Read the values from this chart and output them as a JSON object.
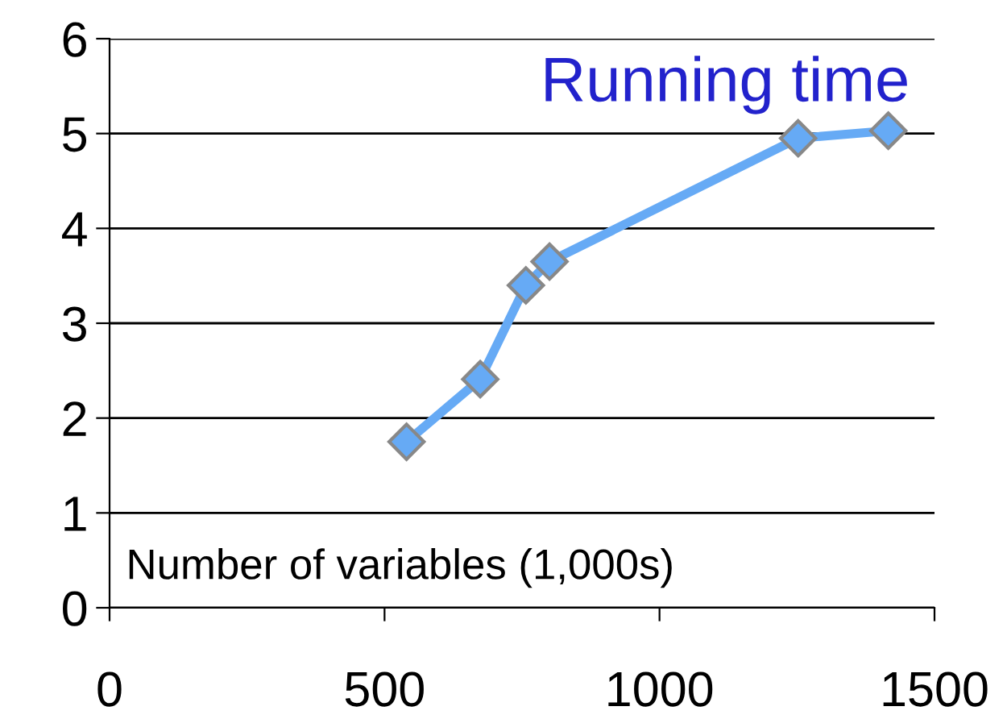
{
  "chart_data": {
    "type": "line",
    "title": "Running time",
    "xlabel": "Number of variables (1,000s)",
    "x": [
      540,
      674,
      757,
      800,
      1252,
      1416
    ],
    "series": [
      {
        "color": "#66aaf5",
        "values": [
          1.75,
          2.41,
          3.4,
          3.65,
          4.95,
          5.03
        ]
      }
    ],
    "xlim": [
      0,
      1500
    ],
    "xticks": [
      0,
      500,
      1000,
      1500
    ],
    "ylim": [
      0,
      6
    ],
    "yticks": [
      0,
      1,
      2,
      3,
      4,
      5,
      6
    ],
    "grid": "y",
    "marker": "diamond",
    "line_style": "solid"
  }
}
